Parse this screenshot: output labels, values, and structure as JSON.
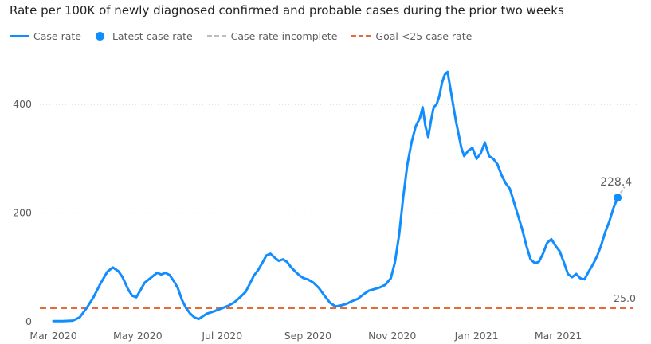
{
  "header": {
    "title": "Rate per 100K of newly diagnosed confirmed and probable cases during the prior two weeks"
  },
  "legend": {
    "items": [
      {
        "label": "Case rate"
      },
      {
        "label": "Latest case rate"
      },
      {
        "label": "Case rate incomplete"
      },
      {
        "label": "Goal <25 case rate"
      }
    ]
  },
  "colors": {
    "case_rate": "#118DFF",
    "incomplete": "#BDBDBD",
    "goal": "#E66C37",
    "grid": "#D0D0D0",
    "axis_text": "#605e5c",
    "latest_label": "#605e5c"
  },
  "chart_data": {
    "type": "line",
    "title": "Rate per 100K of newly diagnosed confirmed and probable cases during the prior two weeks",
    "xlabel": "",
    "ylabel": "",
    "x_start": "2020-03-01",
    "x_end": "2021-04-25",
    "ylim": [
      0,
      475
    ],
    "y_ticks": [
      0,
      200,
      400
    ],
    "grid": true,
    "x_ticks": [
      {
        "date": "2020-03-01",
        "label": "Mar 2020"
      },
      {
        "date": "2020-05-01",
        "label": "May 2020"
      },
      {
        "date": "2020-07-01",
        "label": "Jul 2020"
      },
      {
        "date": "2020-09-01",
        "label": "Sep 2020"
      },
      {
        "date": "2020-11-01",
        "label": "Nov 2020"
      },
      {
        "date": "2021-01-01",
        "label": "Jan 2021"
      },
      {
        "date": "2021-03-01",
        "label": "Mar 2021"
      }
    ],
    "series": [
      {
        "name": "Case rate",
        "points": [
          [
            "2020-03-01",
            1
          ],
          [
            "2020-03-08",
            1
          ],
          [
            "2020-03-15",
            2
          ],
          [
            "2020-03-20",
            8
          ],
          [
            "2020-03-25",
            25
          ],
          [
            "2020-03-30",
            45
          ],
          [
            "2020-04-04",
            70
          ],
          [
            "2020-04-09",
            92
          ],
          [
            "2020-04-13",
            100
          ],
          [
            "2020-04-17",
            93
          ],
          [
            "2020-04-20",
            82
          ],
          [
            "2020-04-24",
            60
          ],
          [
            "2020-04-27",
            48
          ],
          [
            "2020-04-30",
            45
          ],
          [
            "2020-05-03",
            58
          ],
          [
            "2020-05-06",
            72
          ],
          [
            "2020-05-09",
            78
          ],
          [
            "2020-05-12",
            84
          ],
          [
            "2020-05-15",
            90
          ],
          [
            "2020-05-18",
            87
          ],
          [
            "2020-05-21",
            90
          ],
          [
            "2020-05-24",
            86
          ],
          [
            "2020-05-27",
            75
          ],
          [
            "2020-05-30",
            62
          ],
          [
            "2020-06-02",
            40
          ],
          [
            "2020-06-05",
            25
          ],
          [
            "2020-06-08",
            15
          ],
          [
            "2020-06-11",
            8
          ],
          [
            "2020-06-14",
            5
          ],
          [
            "2020-06-17",
            10
          ],
          [
            "2020-06-20",
            15
          ],
          [
            "2020-06-24",
            18
          ],
          [
            "2020-06-28",
            22
          ],
          [
            "2020-07-02",
            26
          ],
          [
            "2020-07-06",
            30
          ],
          [
            "2020-07-10",
            36
          ],
          [
            "2020-07-14",
            45
          ],
          [
            "2020-07-18",
            55
          ],
          [
            "2020-07-21",
            70
          ],
          [
            "2020-07-24",
            85
          ],
          [
            "2020-07-27",
            95
          ],
          [
            "2020-07-30",
            108
          ],
          [
            "2020-08-02",
            122
          ],
          [
            "2020-08-05",
            125
          ],
          [
            "2020-08-08",
            118
          ],
          [
            "2020-08-11",
            112
          ],
          [
            "2020-08-14",
            115
          ],
          [
            "2020-08-17",
            110
          ],
          [
            "2020-08-20",
            100
          ],
          [
            "2020-08-23",
            92
          ],
          [
            "2020-08-26",
            85
          ],
          [
            "2020-08-29",
            80
          ],
          [
            "2020-09-01",
            78
          ],
          [
            "2020-09-05",
            72
          ],
          [
            "2020-09-09",
            62
          ],
          [
            "2020-09-13",
            48
          ],
          [
            "2020-09-17",
            35
          ],
          [
            "2020-09-21",
            28
          ],
          [
            "2020-09-25",
            30
          ],
          [
            "2020-09-29",
            33
          ],
          [
            "2020-10-03",
            38
          ],
          [
            "2020-10-07",
            42
          ],
          [
            "2020-10-11",
            50
          ],
          [
            "2020-10-15",
            57
          ],
          [
            "2020-10-19",
            60
          ],
          [
            "2020-10-23",
            63
          ],
          [
            "2020-10-27",
            68
          ],
          [
            "2020-10-31",
            80
          ],
          [
            "2020-11-03",
            110
          ],
          [
            "2020-11-06",
            160
          ],
          [
            "2020-11-09",
            230
          ],
          [
            "2020-11-12",
            290
          ],
          [
            "2020-11-15",
            330
          ],
          [
            "2020-11-18",
            360
          ],
          [
            "2020-11-21",
            375
          ],
          [
            "2020-11-23",
            395
          ],
          [
            "2020-11-25",
            360
          ],
          [
            "2020-11-27",
            340
          ],
          [
            "2020-11-29",
            370
          ],
          [
            "2020-12-01",
            395
          ],
          [
            "2020-12-03",
            400
          ],
          [
            "2020-12-05",
            415
          ],
          [
            "2020-12-07",
            440
          ],
          [
            "2020-12-09",
            455
          ],
          [
            "2020-12-11",
            460
          ],
          [
            "2020-12-13",
            430
          ],
          [
            "2020-12-15",
            400
          ],
          [
            "2020-12-17",
            370
          ],
          [
            "2020-12-19",
            345
          ],
          [
            "2020-12-21",
            320
          ],
          [
            "2020-12-23",
            305
          ],
          [
            "2020-12-26",
            315
          ],
          [
            "2020-12-29",
            320
          ],
          [
            "2021-01-01",
            300
          ],
          [
            "2021-01-04",
            310
          ],
          [
            "2021-01-07",
            330
          ],
          [
            "2021-01-10",
            305
          ],
          [
            "2021-01-13",
            300
          ],
          [
            "2021-01-16",
            290
          ],
          [
            "2021-01-19",
            270
          ],
          [
            "2021-01-22",
            255
          ],
          [
            "2021-01-25",
            245
          ],
          [
            "2021-01-28",
            220
          ],
          [
            "2021-01-31",
            195
          ],
          [
            "2021-02-03",
            170
          ],
          [
            "2021-02-06",
            140
          ],
          [
            "2021-02-09",
            115
          ],
          [
            "2021-02-12",
            108
          ],
          [
            "2021-02-15",
            110
          ],
          [
            "2021-02-18",
            125
          ],
          [
            "2021-02-21",
            145
          ],
          [
            "2021-02-24",
            152
          ],
          [
            "2021-02-27",
            140
          ],
          [
            "2021-03-02",
            130
          ],
          [
            "2021-03-05",
            110
          ],
          [
            "2021-03-08",
            88
          ],
          [
            "2021-03-11",
            82
          ],
          [
            "2021-03-14",
            88
          ],
          [
            "2021-03-17",
            80
          ],
          [
            "2021-03-20",
            78
          ],
          [
            "2021-03-23",
            92
          ],
          [
            "2021-03-26",
            105
          ],
          [
            "2021-03-29",
            120
          ],
          [
            "2021-04-01",
            140
          ],
          [
            "2021-04-04",
            165
          ],
          [
            "2021-04-07",
            185
          ],
          [
            "2021-04-10",
            210
          ],
          [
            "2021-04-13",
            228.4
          ]
        ]
      },
      {
        "name": "Case rate incomplete",
        "points": [
          [
            "2021-04-13",
            228.4
          ],
          [
            "2021-04-18",
            248
          ]
        ]
      },
      {
        "name": "Goal <25 case rate",
        "constant": 25
      }
    ],
    "latest_point": {
      "date": "2021-04-13",
      "value": 228.4,
      "label": "228.4"
    },
    "goal": {
      "value": 25,
      "label": "25.0"
    }
  }
}
